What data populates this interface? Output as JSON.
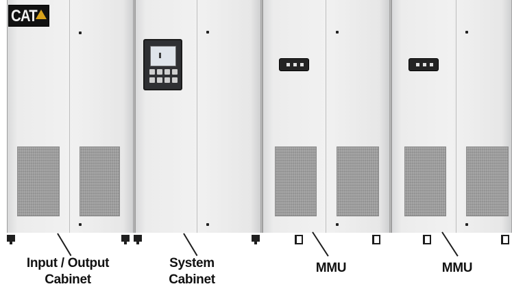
{
  "brand": {
    "logo_text": "CAT"
  },
  "labels": {
    "io_line1": "Input / Output",
    "io_line2": "Cabinet",
    "system_line1": "System",
    "system_line2": "Cabinet",
    "mmu_1": "MMU",
    "mmu_2": "MMU"
  },
  "colors": {
    "cabinet": "#efefef",
    "vent": "#9d9d9d",
    "panel": "#242424",
    "logo_accent": "#d8a21b"
  }
}
